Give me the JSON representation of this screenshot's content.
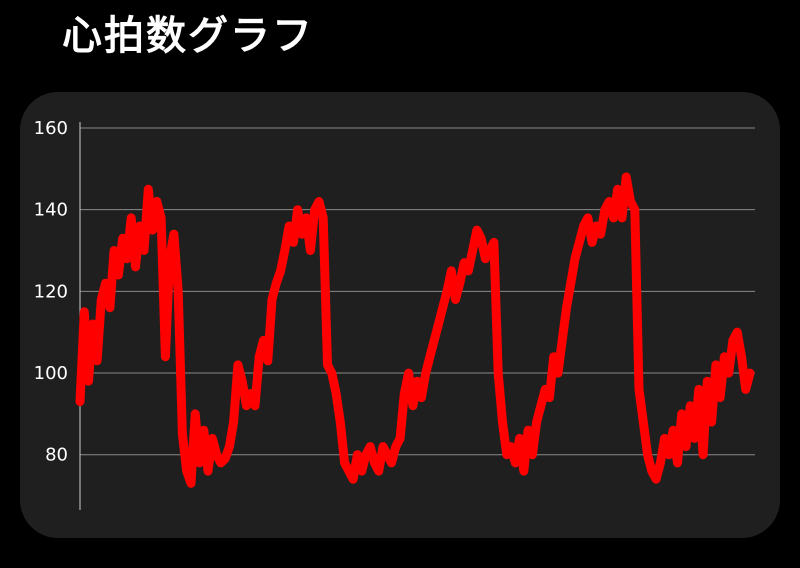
{
  "title": "心拍数グラフ",
  "colors": {
    "background": "#000000",
    "card": "#1f1f1f",
    "line": "#ff0000",
    "grid": "#8a8a8a",
    "axis": "#cccccc",
    "text": "#ffffff"
  },
  "chart_data": {
    "type": "line",
    "title": "心拍数グラフ",
    "xlabel": "",
    "ylabel": "",
    "ylim": [
      65,
      160
    ],
    "yticks": [
      80,
      100,
      120,
      140,
      160
    ],
    "grid": true,
    "legend": "none",
    "series": [
      {
        "values": [
          93,
          115,
          98,
          112,
          103,
          118,
          122,
          116,
          130,
          124,
          133,
          128,
          138,
          126,
          136,
          130,
          145,
          135,
          142,
          138,
          104,
          128,
          134,
          120,
          85,
          76,
          73,
          90,
          78,
          86,
          76,
          84,
          80,
          78,
          79,
          82,
          88,
          102,
          98,
          92,
          95,
          92,
          104,
          108,
          103,
          118,
          122,
          125,
          130,
          136,
          132,
          140,
          134,
          138,
          130,
          140,
          142,
          138,
          102,
          100,
          95,
          88,
          78,
          76,
          74,
          80,
          76,
          80,
          82,
          78,
          76,
          82,
          80,
          78,
          82,
          84,
          95,
          100,
          92,
          98,
          94,
          100,
          104,
          108,
          112,
          116,
          120,
          125,
          118,
          122,
          127,
          125,
          130,
          135,
          133,
          128,
          130,
          132,
          100,
          88,
          80,
          82,
          78,
          84,
          76,
          86,
          80,
          88,
          92,
          96,
          94,
          104,
          100,
          108,
          116,
          122,
          128,
          132,
          136,
          138,
          132,
          136,
          134,
          140,
          142,
          138,
          145,
          138,
          148,
          142,
          140,
          96,
          88,
          80,
          76,
          74,
          78,
          84,
          80,
          86,
          78,
          90,
          82,
          92,
          84,
          96,
          80,
          98,
          88,
          102,
          94,
          104,
          100,
          108,
          110,
          104,
          96,
          100
        ]
      }
    ]
  }
}
